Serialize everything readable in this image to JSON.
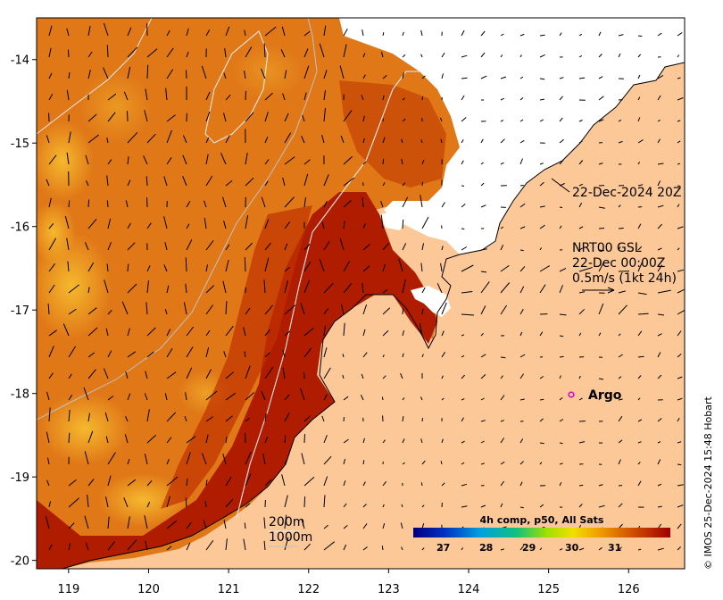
{
  "map": {
    "x_ticks": [
      "119",
      "120",
      "121",
      "122",
      "123",
      "124",
      "125",
      "126"
    ],
    "y_ticks": [
      "-14",
      "-15",
      "-16",
      "-17",
      "-18",
      "-19",
      "-20"
    ],
    "lon_range": [
      118.6,
      126.7
    ],
    "lat_range": [
      -20.1,
      -13.5
    ]
  },
  "annotations": {
    "timestamp": "22-Dec-2024 20Z",
    "current_source": "NRT00 GSL",
    "current_time": "22-Dec 00:00Z",
    "current_scale": "0.5m/s (1kt 24h)",
    "argo_label": "Argo",
    "isobath_200": "200m",
    "isobath_1000": "1000m"
  },
  "colorbar": {
    "title": "4h comp, p50, All Sats",
    "ticks": [
      "27",
      "28",
      "29",
      "30",
      "31"
    ],
    "colors": [
      "#00008b",
      "#0050d0",
      "#00b0e0",
      "#20c060",
      "#e0e000",
      "#f0a000",
      "#d06000",
      "#a00000"
    ]
  },
  "credit": "© IMOS 25-Dec-2024 15:48 Hobart",
  "colors": {
    "land": "#fcc898",
    "sst_warm": "#e07818",
    "sst_hot": "#b02000",
    "sst_mid": "#f0a020",
    "cloud": "#ffffff",
    "argo": "#d000d0"
  }
}
